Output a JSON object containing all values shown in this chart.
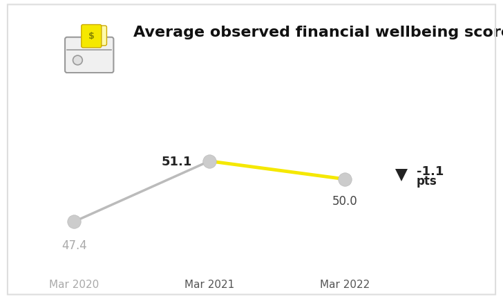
{
  "title": "Average observed financial wellbeing score",
  "x_labels": [
    "Mar 2020",
    "Mar 2021",
    "Mar 2022"
  ],
  "x_positions": [
    0,
    1,
    2
  ],
  "gray_line_x": [
    0,
    1
  ],
  "gray_line_y": [
    47.4,
    51.1
  ],
  "yellow_line_x": [
    1,
    2
  ],
  "yellow_line_y": [
    51.1,
    50.0
  ],
  "gray_color": "#bbbbbb",
  "yellow_color": "#f5e800",
  "marker_color": "#cccccc",
  "marker_edgecolor": "#bbbbbb",
  "marker_size": 14,
  "label_47": "47.4",
  "label_51": "51.1",
  "label_50": "50.0",
  "label_47_color": "#aaaaaa",
  "label_51_color": "#222222",
  "label_50_color": "#444444",
  "xtick_color_0": "#aaaaaa",
  "xtick_color_1": "#555555",
  "xtick_color_2": "#555555",
  "delta_text_line1": "-1.1",
  "delta_text_line2": "pts",
  "delta_color": "#222222",
  "background_color": "#ffffff",
  "border_color": "#dddddd",
  "ylim": [
    44.5,
    54.0
  ],
  "xlim": [
    -0.25,
    2.65
  ],
  "linewidth_gray": 2.5,
  "linewidth_yellow": 3.5,
  "title_fontsize": 16,
  "label_fontsize": 12,
  "xtick_fontsize": 11,
  "delta_fontsize": 13
}
